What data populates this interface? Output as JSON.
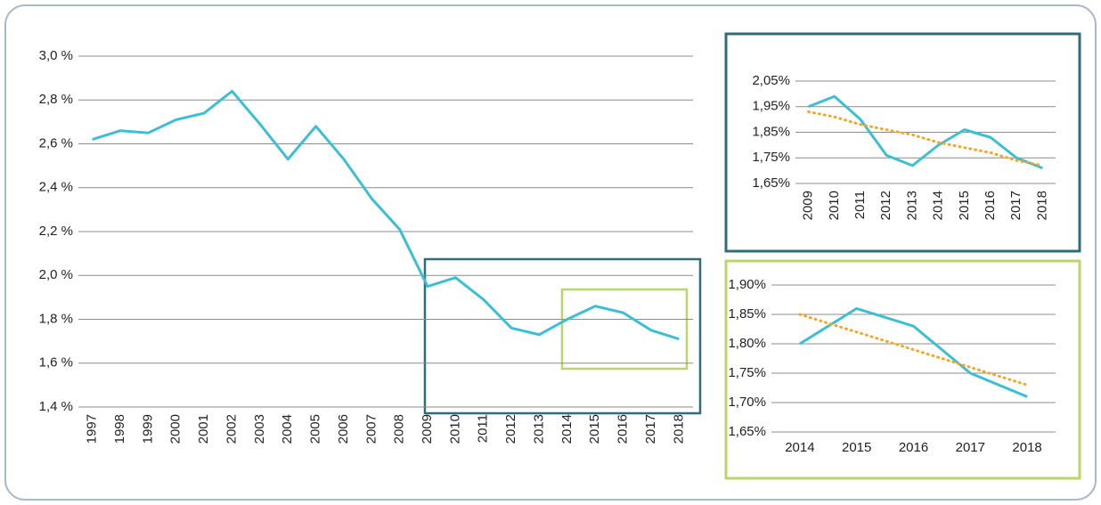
{
  "chart_data": [
    {
      "type": "line",
      "categories": [
        "1997",
        "1998",
        "1999",
        "2000",
        "2001",
        "2002",
        "2003",
        "2004",
        "2005",
        "2006",
        "2007",
        "2008",
        "2009",
        "2010",
        "2011",
        "2012",
        "2013",
        "2014",
        "2015",
        "2016",
        "2017",
        "2018"
      ],
      "series": [
        {
          "color": "#3dbfd3",
          "values": [
            2.62,
            2.66,
            2.65,
            2.71,
            2.74,
            2.84,
            2.69,
            2.53,
            2.68,
            2.53,
            2.35,
            2.21,
            1.95,
            1.99,
            1.89,
            1.76,
            1.73,
            1.8,
            1.86,
            1.83,
            1.75,
            1.71
          ]
        }
      ],
      "ylim": [
        1.4,
        3.0
      ],
      "yticks": [
        {
          "value": 1.4,
          "label": "1,4 %"
        },
        {
          "value": 1.6,
          "label": "1,6 %"
        },
        {
          "value": 1.8,
          "label": "1,8 %"
        },
        {
          "value": 2.0,
          "label": "2,0 %"
        },
        {
          "value": 2.2,
          "label": "2,2 %"
        },
        {
          "value": 2.4,
          "label": "2,4 %"
        },
        {
          "value": 2.6,
          "label": "2,6 %"
        },
        {
          "value": 2.8,
          "label": "2,8 %"
        },
        {
          "value": 3.0,
          "label": "3,0 %"
        }
      ],
      "grid": true
    },
    {
      "type": "line",
      "categories": [
        "2009",
        "2010",
        "2011",
        "2012",
        "2013",
        "2014",
        "2015",
        "2016",
        "2017",
        "2018"
      ],
      "series": [
        {
          "color": "#3dbfd3",
          "values": [
            1.95,
            1.99,
            1.9,
            1.76,
            1.72,
            1.8,
            1.86,
            1.83,
            1.75,
            1.71
          ]
        },
        {
          "color": "#f5a52a",
          "line_style": "dotted",
          "values": [
            1.93,
            1.91,
            1.88,
            1.86,
            1.84,
            1.81,
            1.79,
            1.77,
            1.74,
            1.72
          ]
        }
      ],
      "ylim": [
        1.65,
        2.05
      ],
      "yticks": [
        {
          "value": 1.65,
          "label": "1,65%"
        },
        {
          "value": 1.75,
          "label": "1,75%"
        },
        {
          "value": 1.85,
          "label": "1,85%"
        },
        {
          "value": 1.95,
          "label": "1,95%"
        },
        {
          "value": 2.05,
          "label": "2,05%"
        }
      ],
      "grid": true
    },
    {
      "type": "line",
      "categories": [
        "2014",
        "2015",
        "2016",
        "2017",
        "2018"
      ],
      "series": [
        {
          "color": "#3dbfd3",
          "values": [
            1.8,
            1.86,
            1.83,
            1.75,
            1.71
          ]
        },
        {
          "color": "#f5a52a",
          "line_style": "dotted",
          "values": [
            1.85,
            1.82,
            1.79,
            1.76,
            1.73
          ]
        }
      ],
      "ylim": [
        1.65,
        1.9
      ],
      "yticks": [
        {
          "value": 1.65,
          "label": "1,65%"
        },
        {
          "value": 1.7,
          "label": "1,70%"
        },
        {
          "value": 1.75,
          "label": "1,75%"
        },
        {
          "value": 1.8,
          "label": "1,80%"
        },
        {
          "value": 1.85,
          "label": "1,85%"
        },
        {
          "value": 1.9,
          "label": "1,90%"
        }
      ],
      "grid": true
    }
  ]
}
